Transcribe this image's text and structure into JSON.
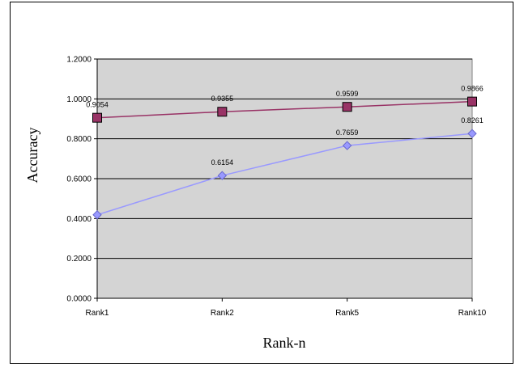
{
  "chart_data": {
    "type": "line",
    "categories": [
      "Rank1",
      "Rank2",
      "Rank5",
      "Rank10"
    ],
    "series": [
      {
        "values": [
          0.9054,
          0.9355,
          0.9599,
          0.9866
        ],
        "labels": [
          "0.9054",
          "0.9355",
          "0.9599",
          "0.9866"
        ],
        "color": "#993366",
        "marker": "square"
      },
      {
        "values": [
          0.4186,
          0.6154,
          0.7659,
          0.8261
        ],
        "labels": [
          "",
          "0.6154",
          "0.7659",
          "0.8261"
        ],
        "color": "#9999FF",
        "marker": "diamond"
      }
    ],
    "xlabel": "Rank-n",
    "ylabel": "Accuracy",
    "ylim": [
      0,
      1.2
    ],
    "yticks": [
      "0.0000",
      "0.2000",
      "0.4000",
      "0.6000",
      "0.8000",
      "1.0000",
      "1.2000"
    ],
    "plot_background": "#D4D4D4",
    "grid": true
  }
}
